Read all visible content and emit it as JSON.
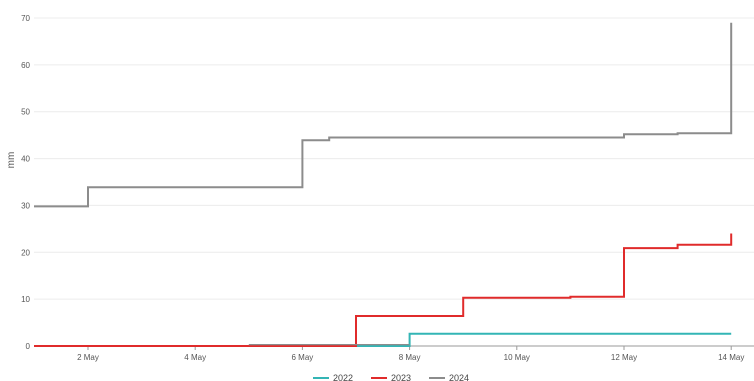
{
  "chart_data": {
    "type": "line",
    "step": true,
    "title": "",
    "xlabel": "",
    "ylabel": "mm",
    "ylim": [
      0,
      70
    ],
    "y_ticks": [
      0,
      10,
      20,
      30,
      40,
      50,
      60,
      70
    ],
    "xlim": [
      "2024-05-01",
      "2024-05-14"
    ],
    "x_ticks": [
      "2 May",
      "4 May",
      "6 May",
      "8 May",
      "10 May",
      "12 May",
      "14 May"
    ],
    "grid": true,
    "legend": "bottom",
    "series": [
      {
        "name": "2022",
        "color": "#33b5b5",
        "points": [
          [
            "2024-05-01",
            0
          ],
          [
            "2024-05-08",
            0
          ],
          [
            "2024-05-08",
            2.6
          ],
          [
            "2024-05-14",
            2.6
          ]
        ]
      },
      {
        "name": "2023",
        "color": "#e02b2b",
        "points": [
          [
            "2024-05-01",
            0
          ],
          [
            "2024-05-07",
            0
          ],
          [
            "2024-05-07",
            6.4
          ],
          [
            "2024-05-09",
            6.4
          ],
          [
            "2024-05-09",
            10.3
          ],
          [
            "2024-05-11",
            10.3
          ],
          [
            "2024-05-11",
            10.5
          ],
          [
            "2024-05-12",
            10.5
          ],
          [
            "2024-05-12",
            20.9
          ],
          [
            "2024-05-13",
            20.9
          ],
          [
            "2024-05-13",
            21.6
          ],
          [
            "2024-05-14",
            21.6
          ],
          [
            "2024-05-14",
            24.0
          ]
        ]
      },
      {
        "name": "2024",
        "color": "#8c8c8c",
        "points": [
          [
            "2024-05-01",
            29.8
          ],
          [
            "2024-05-02",
            29.8
          ],
          [
            "2024-05-02",
            33.9
          ],
          [
            "2024-05-06",
            33.9
          ],
          [
            "2024-05-06",
            43.9
          ],
          [
            "2024-05-06.5",
            43.9
          ],
          [
            "2024-05-06.5",
            44.5
          ],
          [
            "2024-05-12",
            44.5
          ],
          [
            "2024-05-12",
            45.2
          ],
          [
            "2024-05-13",
            45.2
          ],
          [
            "2024-05-13",
            45.4
          ],
          [
            "2024-05-14",
            45.4
          ],
          [
            "2024-05-14",
            69.0
          ]
        ]
      },
      {
        "name": "",
        "color": "#8c8c8c",
        "points": [
          [
            "2024-05-05",
            0.3
          ],
          [
            "2024-05-08",
            0.3
          ]
        ]
      }
    ]
  }
}
